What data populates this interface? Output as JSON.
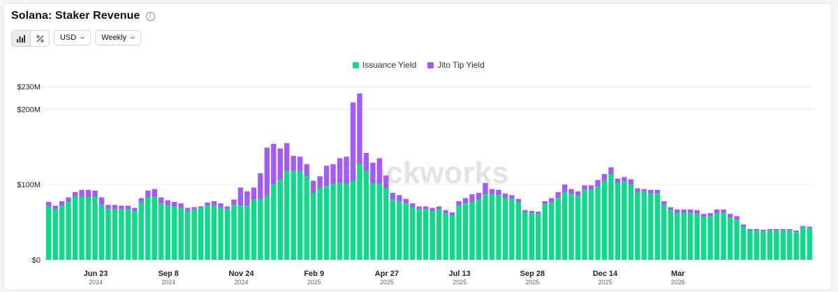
{
  "header": {
    "title": "Solana: Staker Revenue",
    "info_icon": "info-icon"
  },
  "controls": {
    "chart_type_buttons": [
      {
        "icon": "bar-chart-icon",
        "active": true
      },
      {
        "icon": "percent-icon",
        "active": false
      }
    ],
    "currency": "USD",
    "interval": "Weekly"
  },
  "watermark": "Blockworks",
  "colors": {
    "issuance": "#10d98a",
    "jito": "#a35bf5",
    "grid": "#e9e9ee"
  },
  "chart_data": {
    "type": "bar",
    "stacked": true,
    "title": "Solana: Staker Revenue",
    "legend_position": "top-center",
    "grid": true,
    "ylim": [
      0,
      230
    ],
    "ytick_values": [
      0,
      100,
      200,
      230
    ],
    "ytick_labels": [
      "$0",
      "$100M",
      "$200M",
      "$230M"
    ],
    "xticks": [
      {
        "index": 7,
        "label": "Jun 23",
        "year": "2024"
      },
      {
        "index": 18,
        "label": "Sep 8",
        "year": "2024"
      },
      {
        "index": 29,
        "label": "Nov 24",
        "year": "2024"
      },
      {
        "index": 40,
        "label": "Feb 9",
        "year": "2025"
      },
      {
        "index": 51,
        "label": "Apr 27",
        "year": "2025"
      },
      {
        "index": 62,
        "label": "Jul 13",
        "year": "2025"
      },
      {
        "index": 73,
        "label": "Sep 28",
        "year": "2025"
      },
      {
        "index": 84,
        "label": "Dec 14",
        "year": "2025"
      },
      {
        "index": 95,
        "label": "Mar",
        "year": "2026"
      }
    ],
    "series": [
      {
        "name": "Issuance Yield",
        "values": [
          71,
          67,
          72,
          77,
          84,
          84,
          83,
          84,
          73,
          67,
          67,
          67,
          67,
          65,
          76,
          83,
          84,
          75,
          72,
          71,
          69,
          65,
          67,
          69,
          72,
          72,
          69,
          67,
          73,
          72,
          72,
          80,
          80,
          85,
          100,
          106,
          118,
          118,
          118,
          111,
          89,
          95,
          98,
          101,
          103,
          101,
          105,
          127,
          118,
          102,
          101,
          95,
          80,
          78,
          75,
          70,
          67,
          67,
          65,
          67,
          62,
          59,
          72,
          75,
          77,
          80,
          87,
          87,
          86,
          82,
          81,
          77,
          63,
          62,
          61,
          74,
          76,
          82,
          90,
          87,
          85,
          93,
          93,
          97,
          105,
          114,
          102,
          104,
          100,
          90,
          91,
          88,
          88,
          73,
          66,
          62,
          62,
          62,
          61,
          57,
          58,
          62,
          62,
          56,
          53,
          44,
          39,
          39,
          38,
          39,
          39,
          39,
          39,
          37,
          43,
          42
        ]
      },
      {
        "name": "Jito Tip Yield",
        "values": [
          6,
          5,
          6,
          6,
          6,
          9,
          10,
          8,
          10,
          6,
          6,
          5,
          5,
          4,
          6,
          9,
          10,
          8,
          7,
          6,
          6,
          4,
          3,
          2,
          4,
          6,
          6,
          4,
          7,
          24,
          19,
          16,
          35,
          64,
          54,
          42,
          37,
          20,
          19,
          16,
          16,
          16,
          27,
          26,
          32,
          36,
          104,
          94,
          24,
          27,
          34,
          17,
          9,
          8,
          6,
          5,
          4,
          4,
          4,
          4,
          4,
          4,
          6,
          7,
          10,
          9,
          15,
          7,
          7,
          6,
          5,
          4,
          3,
          3,
          3,
          4,
          6,
          8,
          10,
          7,
          6,
          6,
          6,
          9,
          9,
          9,
          6,
          6,
          7,
          5,
          3,
          5,
          5,
          5,
          4,
          5,
          5,
          5,
          5,
          4,
          4,
          5,
          5,
          5,
          5,
          3,
          2,
          2,
          2,
          2,
          2,
          2,
          2,
          2,
          2,
          2
        ]
      }
    ]
  }
}
